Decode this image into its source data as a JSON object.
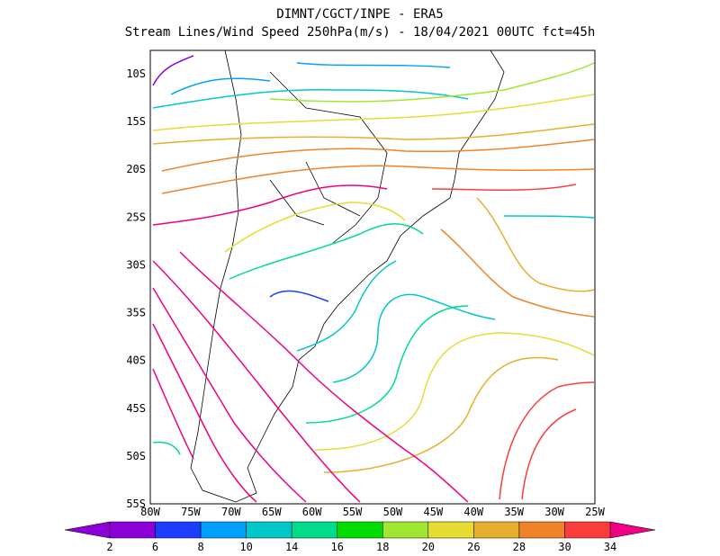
{
  "header": {
    "title": [
      "DIMNT/CGCT/INPE -  ERA5",
      "Stream Lines/Wind Speed 250hPa(m/s) -  18/04/2021 00UTC fct=45h"
    ]
  },
  "map": {
    "lat_labels": [
      "10S",
      "15S",
      "20S",
      "25S",
      "30S",
      "35S",
      "40S",
      "45S",
      "50S",
      "55S"
    ],
    "lon_labels": [
      "80W",
      "75W",
      "70W",
      "65W",
      "60W",
      "55W",
      "50W",
      "45W",
      "40W",
      "35W",
      "30W",
      "25W"
    ]
  },
  "colorbar": {
    "labels": [
      "2",
      "6",
      "8",
      "10",
      "14",
      "16",
      "18",
      "20",
      "26",
      "28",
      "30",
      "34"
    ],
    "colors": [
      "#8c00d7",
      "#1e3cff",
      "#00a0ff",
      "#00c8c8",
      "#00dc8c",
      "#00dc00",
      "#a0e632",
      "#e6dc32",
      "#e6af2d",
      "#f08228",
      "#fa3c3c"
    ],
    "low_color": "#8c00d7",
    "high_color": "#f00082"
  }
}
